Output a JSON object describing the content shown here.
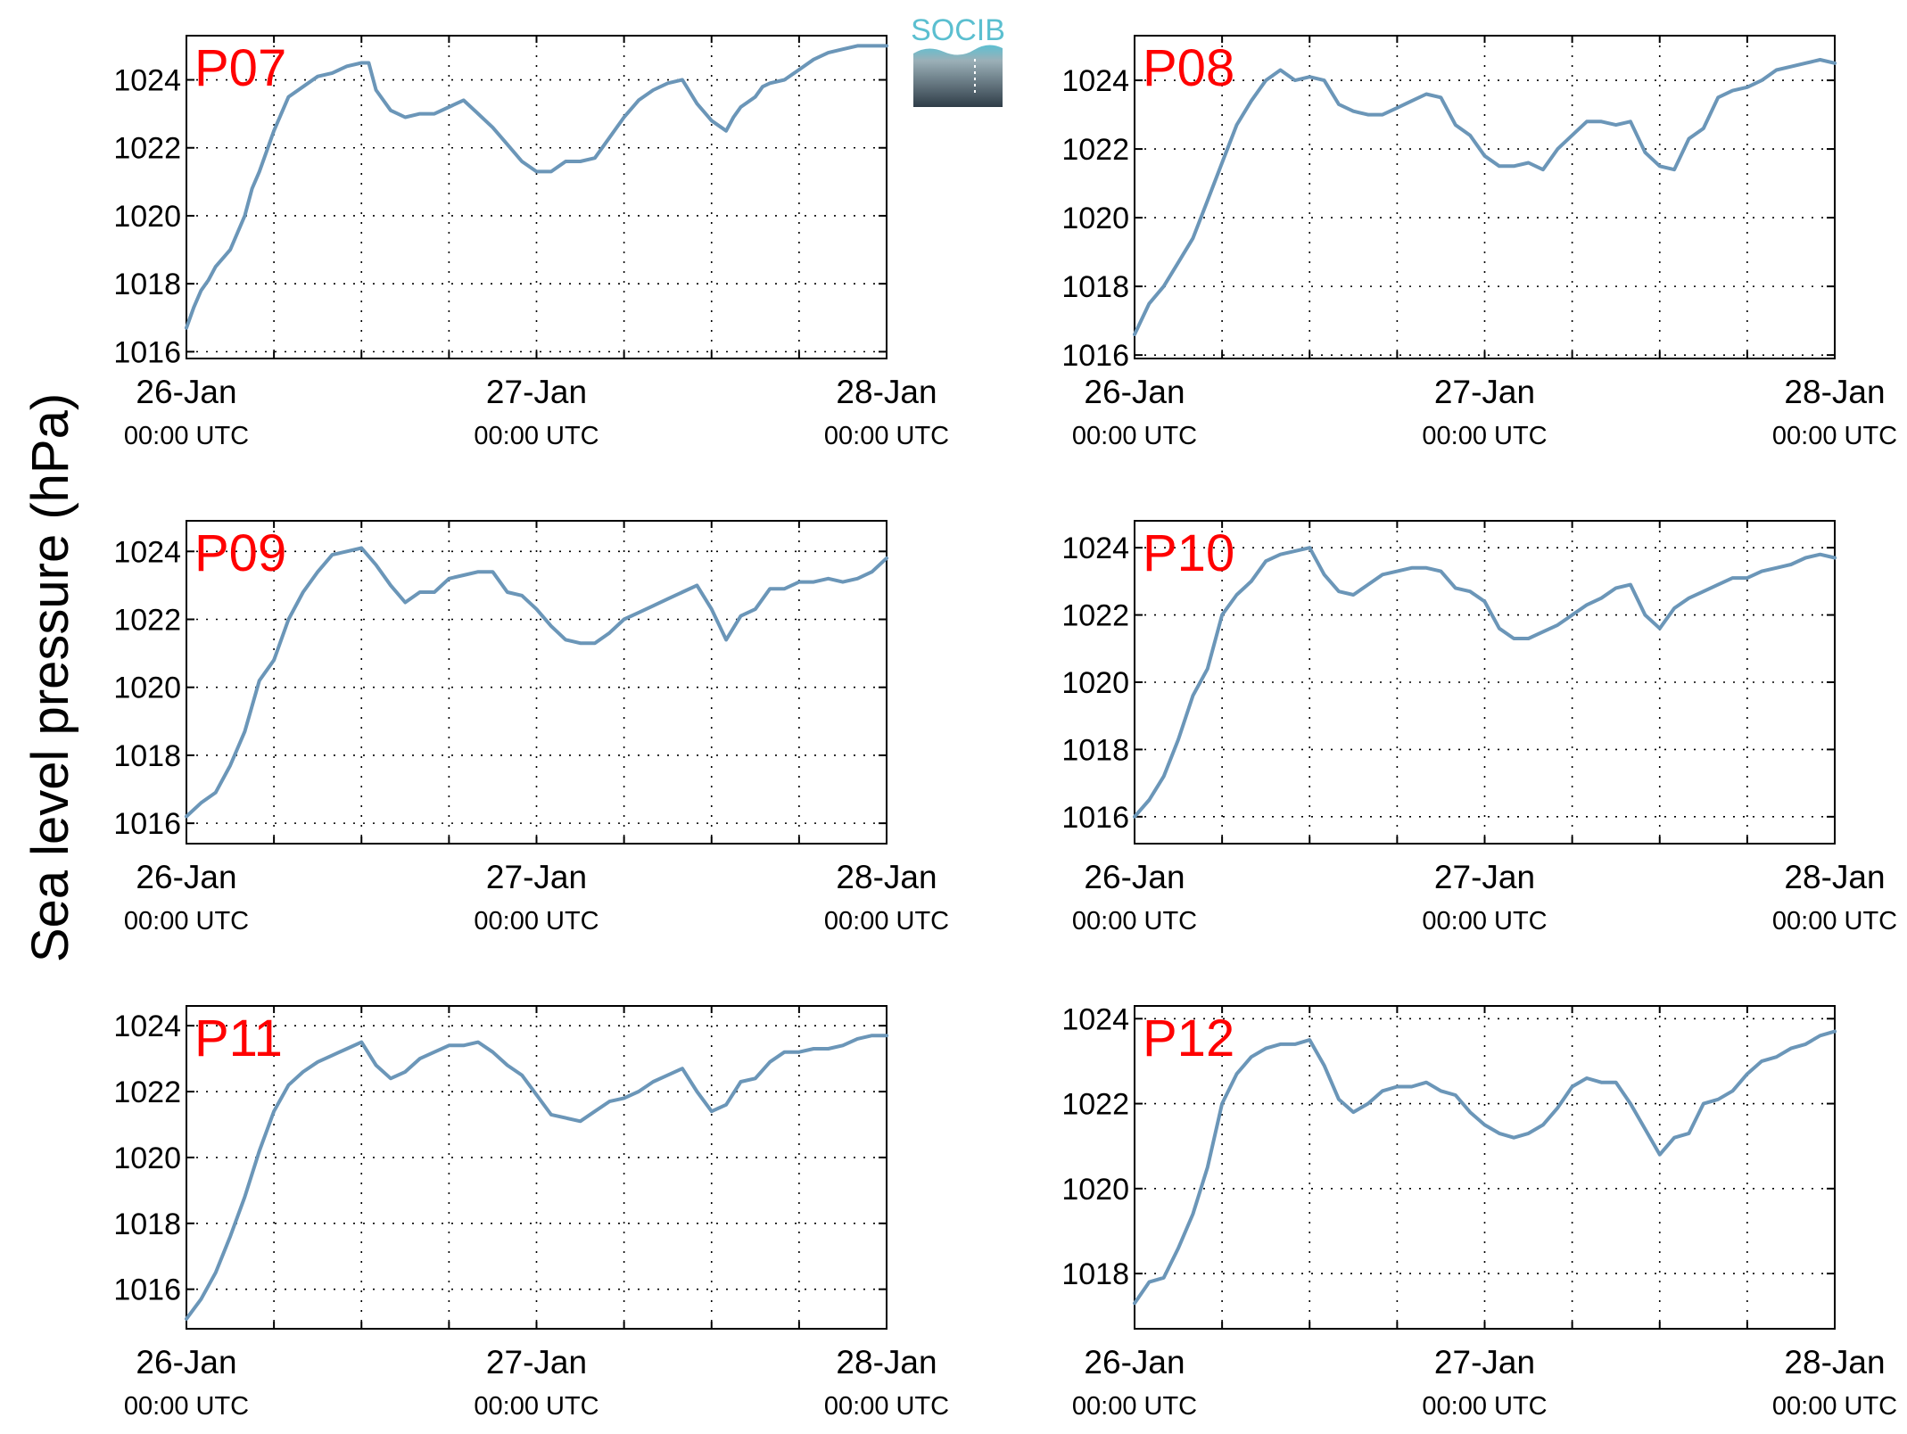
{
  "figure": {
    "ylabel": "Sea level pressure (hPa)",
    "logo_text": "SOCIB",
    "line_color": "#6b96b8",
    "label_color": "#ff0000",
    "logo_color": "#5bbfd0"
  },
  "chart_data": [
    {
      "type": "line",
      "panel_label": "P07",
      "xlabel": "",
      "ylabel": "Sea level pressure (hPa)",
      "xlim": [
        0,
        48
      ],
      "ylim": [
        1015.8,
        1025.3
      ],
      "yticks": [
        1016,
        1018,
        1020,
        1022,
        1024
      ],
      "xticks": [
        {
          "x": 0,
          "date": "26-Jan",
          "time": "00:00 UTC"
        },
        {
          "x": 24,
          "date": "27-Jan",
          "time": "00:00 UTC"
        },
        {
          "x": 48,
          "date": "28-Jan",
          "time": "00:00 UTC"
        }
      ],
      "grid": true,
      "series": [
        {
          "x": [
            0,
            0.5,
            1,
            1.5,
            2,
            3,
            4,
            4.5,
            5,
            6,
            6.5,
            7,
            8,
            9,
            10,
            11,
            12,
            12.5,
            13,
            14,
            15,
            16,
            17,
            18,
            19,
            20,
            21,
            22,
            23,
            24,
            25,
            26,
            27,
            28,
            29,
            30,
            31,
            32,
            33,
            34,
            35,
            36,
            37,
            37.5,
            38,
            39,
            39.5,
            40,
            41,
            42,
            43,
            44,
            45,
            46,
            47,
            48
          ],
          "y": [
            1016.7,
            1017.3,
            1017.8,
            1018.1,
            1018.5,
            1019.0,
            1020.0,
            1020.8,
            1021.3,
            1022.5,
            1023.0,
            1023.5,
            1023.8,
            1024.1,
            1024.2,
            1024.4,
            1024.5,
            1024.5,
            1023.7,
            1023.1,
            1022.9,
            1023.0,
            1023.0,
            1023.2,
            1023.4,
            1023.0,
            1022.6,
            1022.1,
            1021.6,
            1021.3,
            1021.3,
            1021.6,
            1021.6,
            1021.7,
            1022.3,
            1022.9,
            1023.4,
            1023.7,
            1023.9,
            1024.0,
            1023.3,
            1022.8,
            1022.5,
            1022.9,
            1023.2,
            1023.5,
            1023.8,
            1023.9,
            1024.0,
            1024.3,
            1024.6,
            1024.8,
            1024.9,
            1025.0,
            1025.0,
            1025.0
          ]
        }
      ]
    },
    {
      "type": "line",
      "panel_label": "P08",
      "xlabel": "",
      "ylabel": "Sea level pressure (hPa)",
      "xlim": [
        0,
        48
      ],
      "ylim": [
        1015.9,
        1025.3
      ],
      "yticks": [
        1016,
        1018,
        1020,
        1022,
        1024
      ],
      "xticks": [
        {
          "x": 0,
          "date": "26-Jan",
          "time": "00:00 UTC"
        },
        {
          "x": 24,
          "date": "27-Jan",
          "time": "00:00 UTC"
        },
        {
          "x": 48,
          "date": "28-Jan",
          "time": "00:00 UTC"
        }
      ],
      "grid": true,
      "series": [
        {
          "x": [
            0,
            1,
            2,
            3,
            4,
            5,
            6,
            7,
            8,
            9,
            10,
            11,
            12,
            13,
            14,
            15,
            16,
            17,
            18,
            19,
            20,
            21,
            22,
            23,
            24,
            25,
            26,
            27,
            28,
            29,
            30,
            31,
            32,
            33,
            34,
            35,
            36,
            37,
            38,
            39,
            40,
            41,
            42,
            43,
            44,
            45,
            46,
            47,
            48
          ],
          "y": [
            1016.6,
            1017.5,
            1018.0,
            1018.7,
            1019.4,
            1020.5,
            1021.6,
            1022.7,
            1023.4,
            1024.0,
            1024.3,
            1024.0,
            1024.1,
            1024.0,
            1023.3,
            1023.1,
            1023.0,
            1023.0,
            1023.2,
            1023.4,
            1023.6,
            1023.5,
            1022.7,
            1022.4,
            1021.8,
            1021.5,
            1021.5,
            1021.6,
            1021.4,
            1022.0,
            1022.4,
            1022.8,
            1022.8,
            1022.7,
            1022.8,
            1021.9,
            1021.5,
            1021.4,
            1022.3,
            1022.6,
            1023.5,
            1023.7,
            1023.8,
            1024.0,
            1024.3,
            1024.4,
            1024.5,
            1024.6,
            1024.5
          ]
        }
      ]
    },
    {
      "type": "line",
      "panel_label": "P09",
      "xlabel": "",
      "ylabel": "Sea level pressure (hPa)",
      "xlim": [
        0,
        48
      ],
      "ylim": [
        1015.4,
        1024.9
      ],
      "yticks": [
        1016,
        1018,
        1020,
        1022,
        1024
      ],
      "xticks": [
        {
          "x": 0,
          "date": "26-Jan",
          "time": "00:00 UTC"
        },
        {
          "x": 24,
          "date": "27-Jan",
          "time": "00:00 UTC"
        },
        {
          "x": 48,
          "date": "28-Jan",
          "time": "00:00 UTC"
        }
      ],
      "grid": true,
      "series": [
        {
          "x": [
            0,
            1,
            2,
            3,
            4,
            5,
            6,
            7,
            8,
            9,
            10,
            11,
            12,
            13,
            14,
            15,
            16,
            17,
            18,
            19,
            20,
            21,
            22,
            23,
            24,
            25,
            26,
            27,
            28,
            29,
            30,
            31,
            32,
            33,
            34,
            35,
            36,
            37,
            38,
            39,
            40,
            41,
            42,
            43,
            44,
            45,
            46,
            47,
            48
          ],
          "y": [
            1016.2,
            1016.6,
            1016.9,
            1017.7,
            1018.7,
            1020.2,
            1020.8,
            1022.0,
            1022.8,
            1023.4,
            1023.9,
            1024.0,
            1024.1,
            1023.6,
            1023.0,
            1022.5,
            1022.8,
            1022.8,
            1023.2,
            1023.3,
            1023.4,
            1023.4,
            1022.8,
            1022.7,
            1022.3,
            1021.8,
            1021.4,
            1021.3,
            1021.3,
            1021.6,
            1022.0,
            1022.2,
            1022.4,
            1022.6,
            1022.8,
            1023.0,
            1022.3,
            1021.4,
            1022.1,
            1022.3,
            1022.9,
            1022.9,
            1023.1,
            1023.1,
            1023.2,
            1023.1,
            1023.2,
            1023.4,
            1023.8
          ]
        }
      ]
    },
    {
      "type": "line",
      "panel_label": "P10",
      "xlabel": "",
      "ylabel": "Sea level pressure (hPa)",
      "xlim": [
        0,
        48
      ],
      "ylim": [
        1015.2,
        1024.8
      ],
      "yticks": [
        1016,
        1018,
        1020,
        1022,
        1024
      ],
      "xticks": [
        {
          "x": 0,
          "date": "26-Jan",
          "time": "00:00 UTC"
        },
        {
          "x": 24,
          "date": "27-Jan",
          "time": "00:00 UTC"
        },
        {
          "x": 48,
          "date": "28-Jan",
          "time": "00:00 UTC"
        }
      ],
      "grid": true,
      "series": [
        {
          "x": [
            0,
            1,
            2,
            3,
            4,
            5,
            6,
            7,
            8,
            9,
            10,
            11,
            12,
            13,
            14,
            15,
            16,
            17,
            18,
            19,
            20,
            21,
            22,
            23,
            24,
            25,
            26,
            27,
            28,
            29,
            30,
            31,
            32,
            33,
            34,
            35,
            36,
            37,
            38,
            39,
            40,
            41,
            42,
            43,
            44,
            45,
            46,
            47,
            48
          ],
          "y": [
            1016.0,
            1016.5,
            1017.2,
            1018.3,
            1019.6,
            1020.4,
            1022.0,
            1022.6,
            1023.0,
            1023.6,
            1023.8,
            1023.9,
            1024.0,
            1023.2,
            1022.7,
            1022.6,
            1022.9,
            1023.2,
            1023.3,
            1023.4,
            1023.4,
            1023.3,
            1022.8,
            1022.7,
            1022.4,
            1021.6,
            1021.3,
            1021.3,
            1021.5,
            1021.7,
            1022.0,
            1022.3,
            1022.5,
            1022.8,
            1022.9,
            1022.0,
            1021.6,
            1022.2,
            1022.5,
            1022.7,
            1022.9,
            1023.1,
            1023.1,
            1023.3,
            1023.4,
            1023.5,
            1023.7,
            1023.8,
            1023.7
          ]
        }
      ]
    },
    {
      "type": "line",
      "panel_label": "P11",
      "xlabel": "",
      "ylabel": "Sea level pressure (hPa)",
      "xlim": [
        0,
        48
      ],
      "ylim": [
        1014.8,
        1024.6
      ],
      "yticks": [
        1016,
        1018,
        1020,
        1022,
        1024
      ],
      "xticks": [
        {
          "x": 0,
          "date": "26-Jan",
          "time": "00:00 UTC"
        },
        {
          "x": 24,
          "date": "27-Jan",
          "time": "00:00 UTC"
        },
        {
          "x": 48,
          "date": "28-Jan",
          "time": "00:00 UTC"
        }
      ],
      "grid": true,
      "series": [
        {
          "x": [
            0,
            1,
            2,
            3,
            4,
            5,
            6,
            7,
            8,
            9,
            10,
            11,
            12,
            13,
            14,
            15,
            16,
            17,
            18,
            19,
            20,
            21,
            22,
            23,
            24,
            25,
            26,
            27,
            28,
            29,
            30,
            31,
            32,
            33,
            34,
            35,
            36,
            37,
            38,
            39,
            40,
            41,
            42,
            43,
            44,
            45,
            46,
            47,
            48
          ],
          "y": [
            1015.1,
            1015.7,
            1016.5,
            1017.6,
            1018.8,
            1020.2,
            1021.4,
            1022.2,
            1022.6,
            1022.9,
            1023.1,
            1023.3,
            1023.5,
            1022.8,
            1022.4,
            1022.6,
            1023.0,
            1023.2,
            1023.4,
            1023.4,
            1023.5,
            1023.2,
            1022.8,
            1022.5,
            1021.9,
            1021.3,
            1021.2,
            1021.1,
            1021.4,
            1021.7,
            1021.8,
            1022.0,
            1022.3,
            1022.5,
            1022.7,
            1022.0,
            1021.4,
            1021.6,
            1022.3,
            1022.4,
            1022.9,
            1023.2,
            1023.2,
            1023.3,
            1023.3,
            1023.4,
            1023.6,
            1023.7,
            1023.7
          ]
        }
      ]
    },
    {
      "type": "line",
      "panel_label": "P12",
      "xlabel": "",
      "ylabel": "Sea level pressure (hPa)",
      "xlim": [
        0,
        48
      ],
      "ylim": [
        1016.7,
        1024.3
      ],
      "yticks": [
        1018,
        1020,
        1022,
        1024
      ],
      "xticks": [
        {
          "x": 0,
          "date": "26-Jan",
          "time": "00:00 UTC"
        },
        {
          "x": 24,
          "date": "27-Jan",
          "time": "00:00 UTC"
        },
        {
          "x": 48,
          "date": "28-Jan",
          "time": "00:00 UTC"
        }
      ],
      "grid": true,
      "series": [
        {
          "x": [
            0,
            1,
            2,
            3,
            4,
            5,
            6,
            7,
            8,
            9,
            10,
            11,
            12,
            13,
            14,
            15,
            16,
            17,
            18,
            19,
            20,
            21,
            22,
            23,
            24,
            25,
            26,
            27,
            28,
            29,
            30,
            31,
            32,
            33,
            34,
            35,
            36,
            37,
            38,
            39,
            40,
            41,
            42,
            43,
            44,
            45,
            46,
            47,
            48
          ],
          "y": [
            1017.3,
            1017.8,
            1017.9,
            1018.6,
            1019.4,
            1020.5,
            1022.0,
            1022.7,
            1023.1,
            1023.3,
            1023.4,
            1023.4,
            1023.5,
            1022.9,
            1022.1,
            1021.8,
            1022.0,
            1022.3,
            1022.4,
            1022.4,
            1022.5,
            1022.3,
            1022.2,
            1021.8,
            1021.5,
            1021.3,
            1021.2,
            1021.3,
            1021.5,
            1021.9,
            1022.4,
            1022.6,
            1022.5,
            1022.5,
            1022.0,
            1021.4,
            1020.8,
            1021.2,
            1021.3,
            1022.0,
            1022.1,
            1022.3,
            1022.7,
            1023.0,
            1023.1,
            1023.3,
            1023.4,
            1023.6,
            1023.7
          ]
        }
      ]
    }
  ]
}
